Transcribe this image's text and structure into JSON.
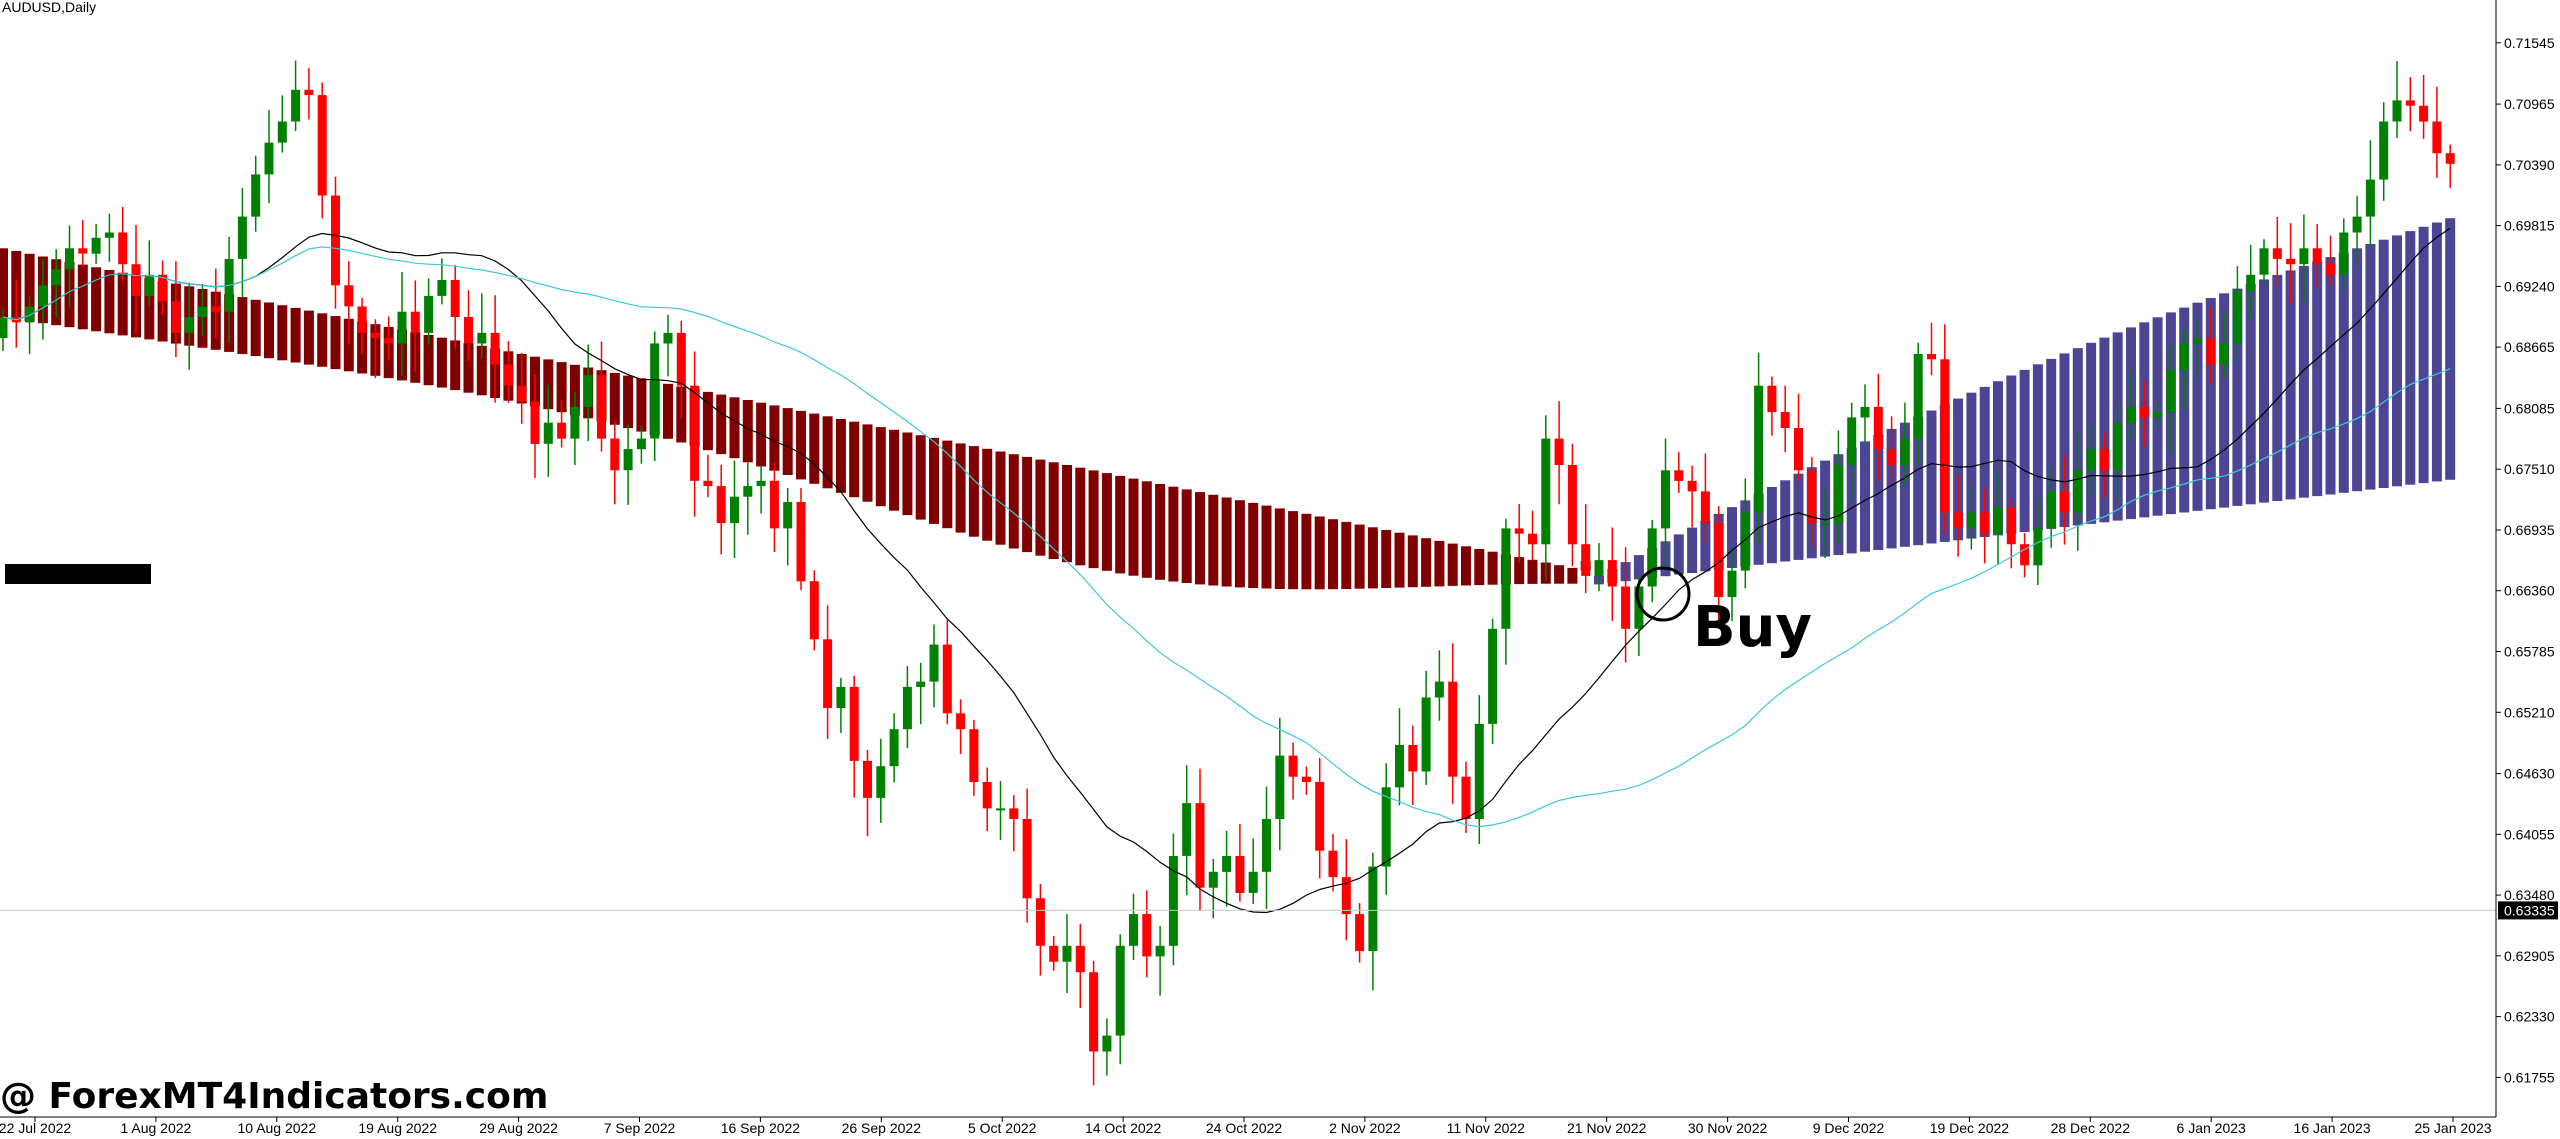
{
  "symbol_label": "AUDUSD,Daily",
  "buy_label": "Buy",
  "watermark": "@ ForexMT4Indicators.com",
  "current_price_label": "0.63335",
  "colors": {
    "bull_candle": "#008000",
    "bear_candle": "#ff0000",
    "bear_histogram": "#800000",
    "bull_histogram": "#4b4594",
    "slow_ma": "#000000",
    "fast_ma": "#40c8d8",
    "grid_line": "#c8c8c8"
  },
  "chart_data": {
    "type": "candlestick",
    "title": "",
    "y_axis": {
      "ticks": [
        "0.71545",
        "0.70965",
        "0.70390",
        "0.69815",
        "0.69240",
        "0.68665",
        "0.68085",
        "0.67510",
        "0.66935",
        "0.66360",
        "0.65785",
        "0.65210",
        "0.64630",
        "0.64055",
        "0.63480",
        "0.62905",
        "0.62330",
        "0.61755"
      ],
      "ylim": [
        0.6138,
        0.7195
      ]
    },
    "x_axis": {
      "ticks": [
        "22 Jul 2022",
        "1 Aug 2022",
        "10 Aug 2022",
        "19 Aug 2022",
        "29 Aug 2022",
        "7 Sep 2022",
        "16 Sep 2022",
        "26 Sep 2022",
        "5 Oct 2022",
        "14 Oct 2022",
        "24 Oct 2022",
        "2 Nov 2022",
        "11 Nov 2022",
        "21 Nov 2022",
        "30 Nov 2022",
        "9 Dec 2022",
        "19 Dec 2022",
        "28 Dec 2022",
        "6 Jan 2023",
        "16 Jan 2023",
        "25 Jan 2023"
      ]
    },
    "current_price": 0.63335,
    "candle_closes": [
      0.6895,
      0.689,
      0.6905,
      0.6925,
      0.694,
      0.696,
      0.6955,
      0.697,
      0.6975,
      0.6945,
      0.6915,
      0.6935,
      0.691,
      0.688,
      0.6895,
      0.6905,
      0.69,
      0.695,
      0.699,
      0.703,
      0.706,
      0.708,
      0.711,
      0.7105,
      0.701,
      0.6925,
      0.6905,
      0.688,
      0.6875,
      0.687,
      0.69,
      0.688,
      0.6915,
      0.693,
      0.6895,
      0.687,
      0.688,
      0.685,
      0.683,
      0.6815,
      0.6775,
      0.6795,
      0.678,
      0.681,
      0.684,
      0.678,
      0.675,
      0.677,
      0.678,
      0.687,
      0.688,
      0.683,
      0.674,
      0.6735,
      0.67,
      0.6725,
      0.6735,
      0.674,
      0.6695,
      0.672,
      0.6645,
      0.659,
      0.6525,
      0.6545,
      0.6475,
      0.644,
      0.647,
      0.6505,
      0.6545,
      0.655,
      0.6585,
      0.652,
      0.6505,
      0.6455,
      0.643,
      0.643,
      0.642,
      0.6345,
      0.63,
      0.6285,
      0.63,
      0.6275,
      0.62,
      0.6215,
      0.63,
      0.633,
      0.629,
      0.63,
      0.6385,
      0.6435,
      0.6355,
      0.637,
      0.6385,
      0.635,
      0.637,
      0.642,
      0.648,
      0.646,
      0.6455,
      0.639,
      0.6365,
      0.633,
      0.6295,
      0.6375,
      0.645,
      0.649,
      0.6465,
      0.6535,
      0.655,
      0.646,
      0.642,
      0.651,
      0.66,
      0.6695,
      0.669,
      0.668,
      0.678,
      0.6755,
      0.668,
      0.665,
      0.6665,
      0.664,
      0.66,
      0.664,
      0.6695,
      0.675,
      0.674,
      0.673,
      0.67,
      0.663,
      0.6655,
      0.671,
      0.683,
      0.6805,
      0.679,
      0.675,
      0.67,
      0.67,
      0.6755,
      0.68,
      0.681,
      0.677,
      0.6755,
      0.678,
      0.686,
      0.6855,
      0.671,
      0.6695,
      0.671,
      0.669,
      0.6715,
      0.668,
      0.666,
      0.6695,
      0.673,
      0.671,
      0.675,
      0.677,
      0.675,
      0.6795,
      0.681,
      0.68,
      0.6805,
      0.6845,
      0.687,
      0.6875,
      0.685,
      0.687,
      0.692,
      0.6935,
      0.696,
      0.695,
      0.6945,
      0.696,
      0.6945,
      0.6935,
      0.6975,
      0.699,
      0.7025,
      0.708,
      0.71,
      0.7095,
      0.708,
      0.705,
      0.704
    ]
  }
}
